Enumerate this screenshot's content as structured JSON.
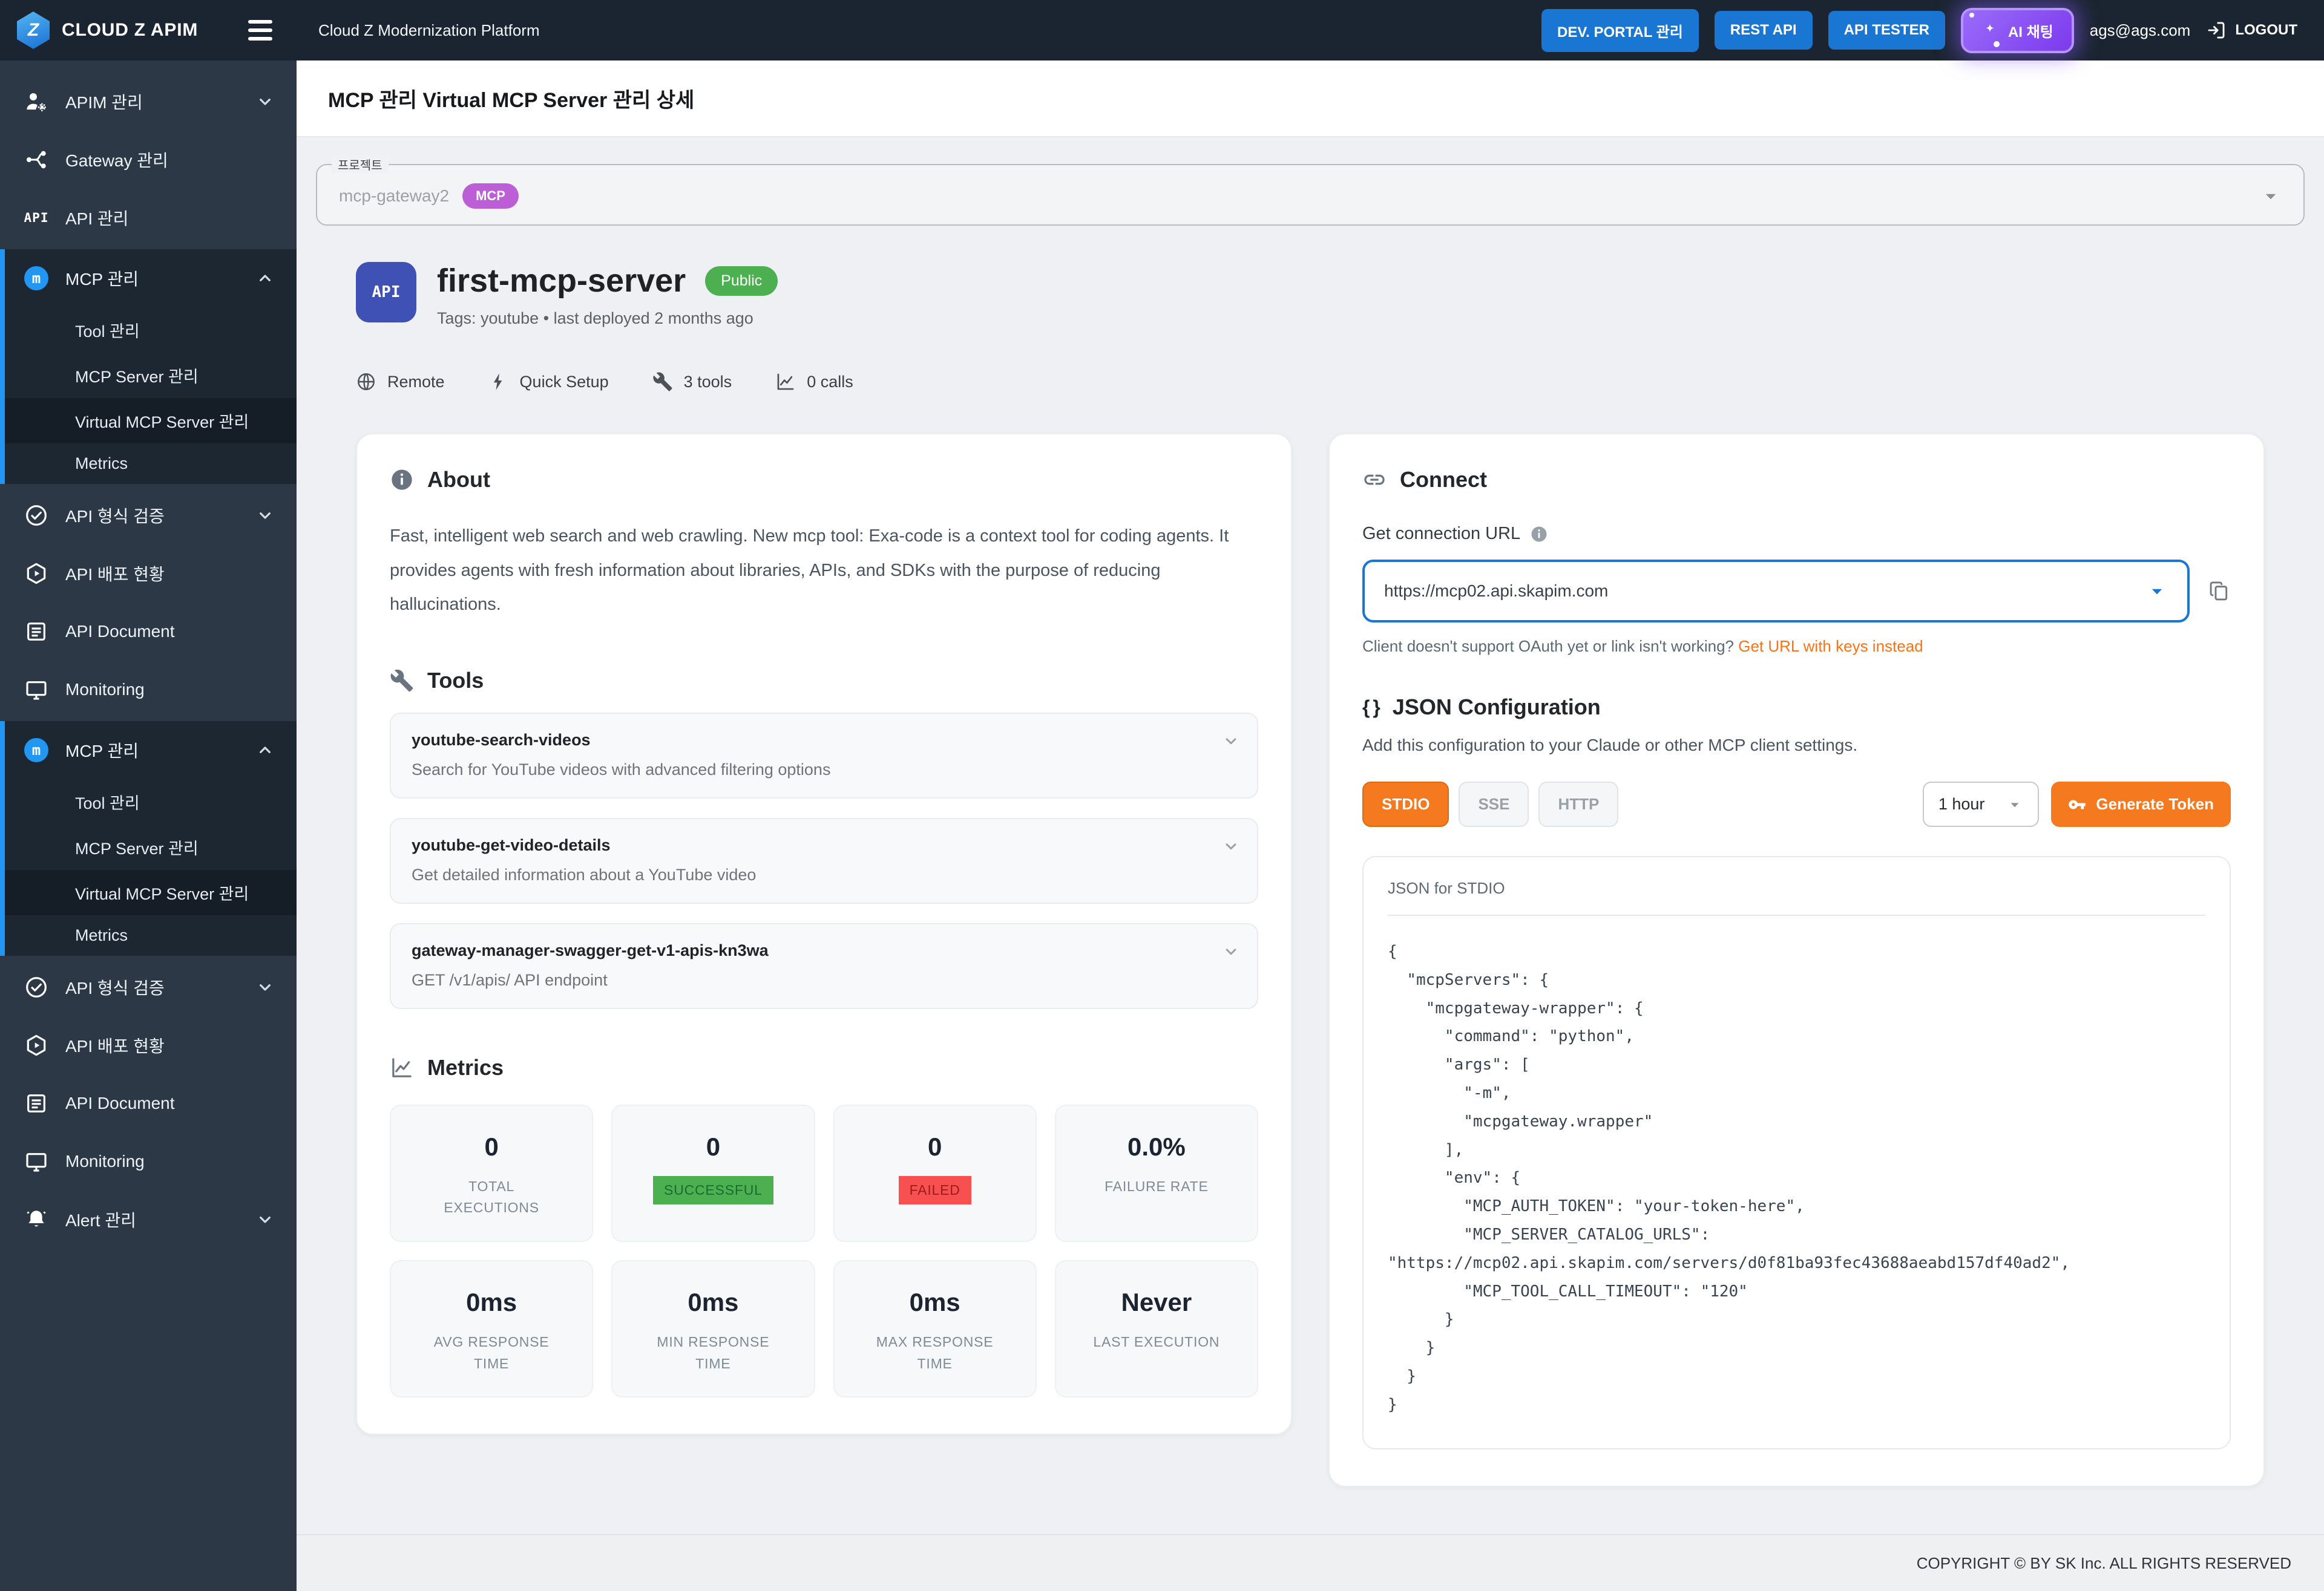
{
  "colors": {
    "topbar_bg": "#1b2531",
    "sidebar_bg": "#2c3845",
    "accent_blue": "#1976d2",
    "accent_orange": "#f4791f",
    "success_green": "#4caf50",
    "error_red": "#f85050",
    "mcp_purple": "#bc5fd6",
    "ai_purple": "#7c3aed",
    "link_orange": "#f97316"
  },
  "topbar": {
    "logo_letter": "Z",
    "brand": "CLOUD Z APIM",
    "platform_title": "Cloud Z Modernization Platform",
    "buttons": [
      {
        "label": "DEV. PORTAL 관리"
      },
      {
        "label": "REST API"
      },
      {
        "label": "API TESTER"
      }
    ],
    "ai_chat_label": "AI 채팅",
    "user_email": "ags@ags.com",
    "logout_label": "LOGOUT"
  },
  "sidebar": {
    "items": [
      {
        "label": "APIM 관리",
        "icon": "apim-admin-icon",
        "chevron": "down"
      },
      {
        "label": "Gateway 관리",
        "icon": "gateway-icon"
      },
      {
        "label": "API 관리",
        "icon": "api-icon"
      },
      {
        "label": "MCP 관리",
        "icon": "mcp-icon",
        "chevron": "up",
        "children": [
          {
            "label": "Tool 관리"
          },
          {
            "label": "MCP Server 관리"
          },
          {
            "label": "Virtual MCP Server 관리",
            "active": true
          },
          {
            "label": "Metrics"
          }
        ]
      },
      {
        "label": "API 형식 검증",
        "icon": "check-circle-icon",
        "chevron": "down"
      },
      {
        "label": "API 배포 현황",
        "icon": "deploy-icon"
      },
      {
        "label": "API Document",
        "icon": "document-icon"
      },
      {
        "label": "Monitoring",
        "icon": "monitor-icon"
      },
      {
        "label": "MCP 관리",
        "icon": "mcp-icon",
        "chevron": "up",
        "children": [
          {
            "label": "Tool 관리"
          },
          {
            "label": "MCP Server 관리"
          },
          {
            "label": "Virtual MCP Server 관리",
            "active": true
          },
          {
            "label": "Metrics"
          }
        ]
      },
      {
        "label": "API 형식 검증",
        "icon": "check-circle-icon",
        "chevron": "down"
      },
      {
        "label": "API 배포 현황",
        "icon": "deploy-icon"
      },
      {
        "label": "API Document",
        "icon": "document-icon"
      },
      {
        "label": "Monitoring",
        "icon": "monitor-icon"
      },
      {
        "label": "Alert 관리",
        "icon": "bell-icon",
        "chevron": "down"
      }
    ]
  },
  "page": {
    "title": "MCP 관리 Virtual MCP Server 관리 상세"
  },
  "project": {
    "label": "프로젝트",
    "value": "mcp-gateway2",
    "badge": "MCP"
  },
  "server": {
    "avatar_text": "API",
    "name": "first-mcp-server",
    "visibility": "Public",
    "tags_line": "Tags: youtube • last deployed 2 months ago",
    "stats": [
      {
        "icon": "globe-icon",
        "label": "Remote"
      },
      {
        "icon": "bolt-icon",
        "label": "Quick Setup"
      },
      {
        "icon": "wrench-icon",
        "label": "3 tools"
      },
      {
        "icon": "chart-icon",
        "label": "0 calls"
      }
    ]
  },
  "about": {
    "title": "About",
    "text": "Fast, intelligent web search and web crawling. New mcp tool: Exa-code is a context tool for coding agents. It provides agents with fresh information about libraries, APIs, and SDKs with the purpose of reducing hallucinations."
  },
  "tools": {
    "title": "Tools",
    "items": [
      {
        "name": "youtube-search-videos",
        "description": "Search for YouTube videos with advanced filtering options"
      },
      {
        "name": "youtube-get-video-details",
        "description": "Get detailed information about a YouTube video"
      },
      {
        "name": "gateway-manager-swagger-get-v1-apis-kn3wa",
        "description": "GET /v1/apis/ API endpoint"
      }
    ]
  },
  "metrics": {
    "title": "Metrics",
    "cards": [
      {
        "value": "0",
        "label": "TOTAL EXECUTIONS",
        "variant": "plain"
      },
      {
        "value": "0",
        "label": "SUCCESSFUL",
        "variant": "success"
      },
      {
        "value": "0",
        "label": "FAILED",
        "variant": "failed"
      },
      {
        "value": "0.0%",
        "label": "FAILURE RATE",
        "variant": "plain"
      },
      {
        "value": "0ms",
        "label": "AVG RESPONSE TIME",
        "variant": "plain"
      },
      {
        "value": "0ms",
        "label": "MIN RESPONSE TIME",
        "variant": "plain"
      },
      {
        "value": "0ms",
        "label": "MAX RESPONSE TIME",
        "variant": "plain"
      },
      {
        "value": "Never",
        "label": "LAST EXECUTION",
        "variant": "plain"
      }
    ]
  },
  "connect": {
    "title": "Connect",
    "url_label": "Get connection URL",
    "url_value": "https://mcp02.api.skapim.com",
    "helper_text": "Client doesn't support OAuth yet or link isn't working?",
    "helper_link": "Get URL with keys instead"
  },
  "json_config": {
    "title_glyph": "{ }",
    "title": "JSON Configuration",
    "subtitle": "Add this configuration to your Claude or other MCP client settings.",
    "tabs": [
      {
        "label": "STDIO",
        "active": true
      },
      {
        "label": "SSE",
        "active": false
      },
      {
        "label": "HTTP",
        "active": false
      }
    ],
    "token_duration": "1 hour",
    "generate_button": "Generate Token",
    "code_title": "JSON for STDIO",
    "code": "{\n  \"mcpServers\": {\n    \"mcpgateway-wrapper\": {\n      \"command\": \"python\",\n      \"args\": [\n        \"-m\",\n        \"mcpgateway.wrapper\"\n      ],\n      \"env\": {\n        \"MCP_AUTH_TOKEN\": \"your-token-here\",\n        \"MCP_SERVER_CATALOG_URLS\": \"https://mcp02.api.skapim.com/servers/d0f81ba93fec43688aeabd157df40ad2\",\n        \"MCP_TOOL_CALL_TIMEOUT\": \"120\"\n      }\n    }\n  }\n}"
  },
  "footer": {
    "copyright": "COPYRIGHT © BY SK Inc. ALL RIGHTS RESERVED"
  }
}
